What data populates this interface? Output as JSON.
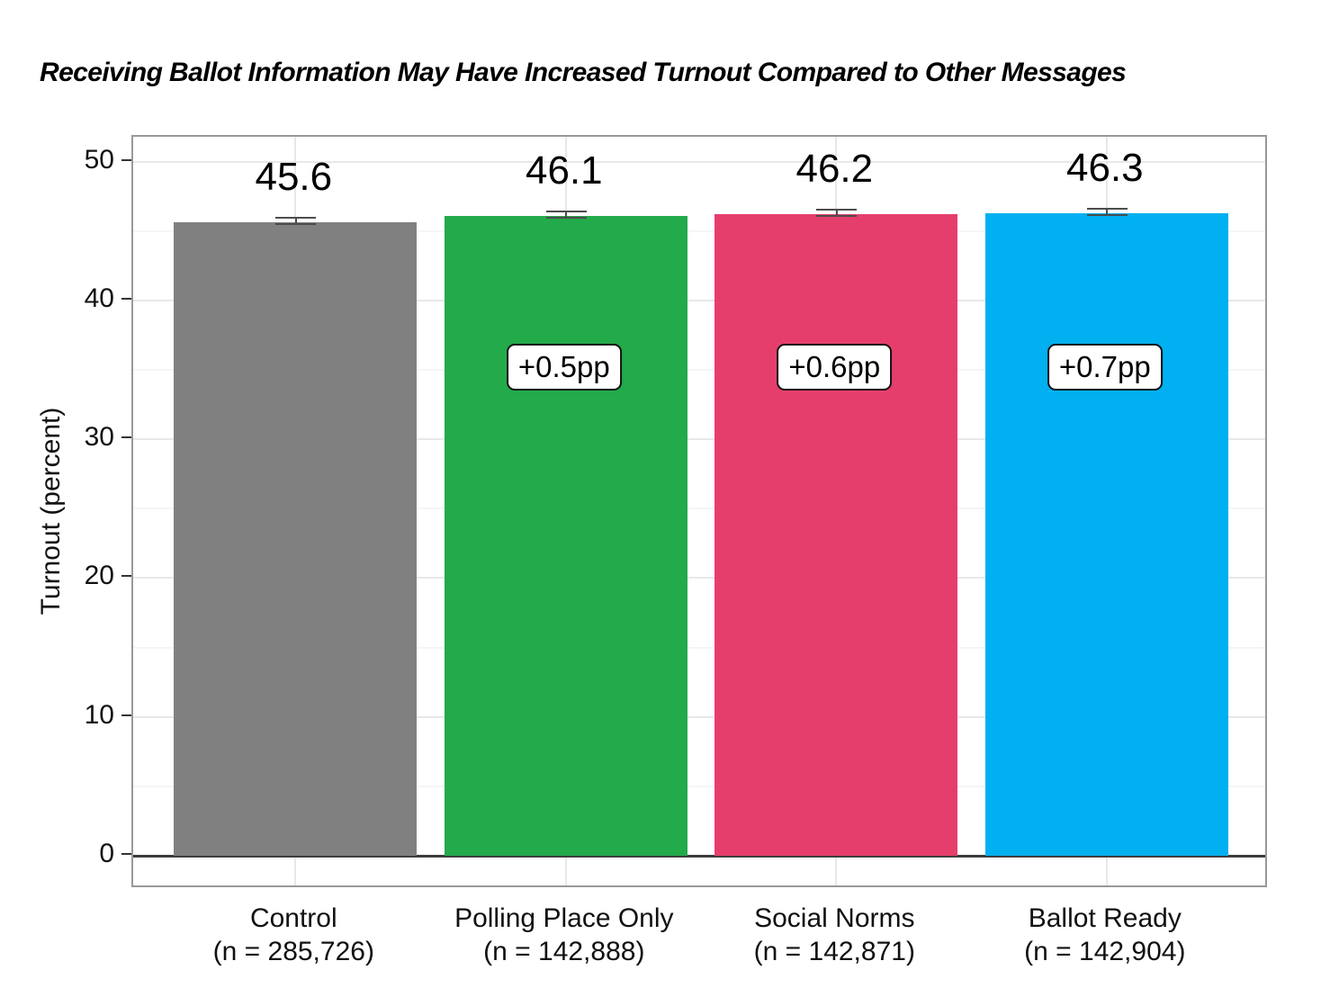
{
  "title": "Receiving Ballot Information May Have Increased Turnout Compared to Other Messages",
  "y_axis": {
    "label": "Turnout (percent)",
    "tick_labels": [
      "0",
      "10",
      "20",
      "30",
      "40",
      "50"
    ]
  },
  "chart_data": {
    "type": "bar",
    "title": "Receiving Ballot Information May Have Increased Turnout Compared to Other Messages",
    "xlabel": "",
    "ylabel": "Turnout (percent)",
    "ylim": [
      0,
      51.8
    ],
    "grid": true,
    "legend": false,
    "categories": [
      "Control",
      "Polling Place Only",
      "Social Norms",
      "Ballot Ready"
    ],
    "sample_labels": [
      "(n = 285,726)",
      "(n = 142,888)",
      "(n = 142,871)",
      "(n = 142,904)"
    ],
    "values": [
      45.6,
      46.1,
      46.2,
      46.3
    ],
    "value_labels": [
      "45.6",
      "46.1",
      "46.2",
      "46.3"
    ],
    "effect_labels": [
      null,
      "+0.5pp",
      "+0.6pp",
      "+0.7pp"
    ],
    "bar_colors": [
      "#808080",
      "#23aa4b",
      "#e63e6c",
      "#00b0f0"
    ],
    "error_bar_color": "#4d4d4d",
    "has_error_bars": true,
    "major_gridline_values": [
      10,
      20,
      30,
      40,
      50
    ],
    "minor_gridline_values": [
      5,
      15,
      25,
      35,
      45
    ],
    "axis_tick_values": [
      0,
      10,
      20,
      30,
      40,
      50
    ]
  }
}
